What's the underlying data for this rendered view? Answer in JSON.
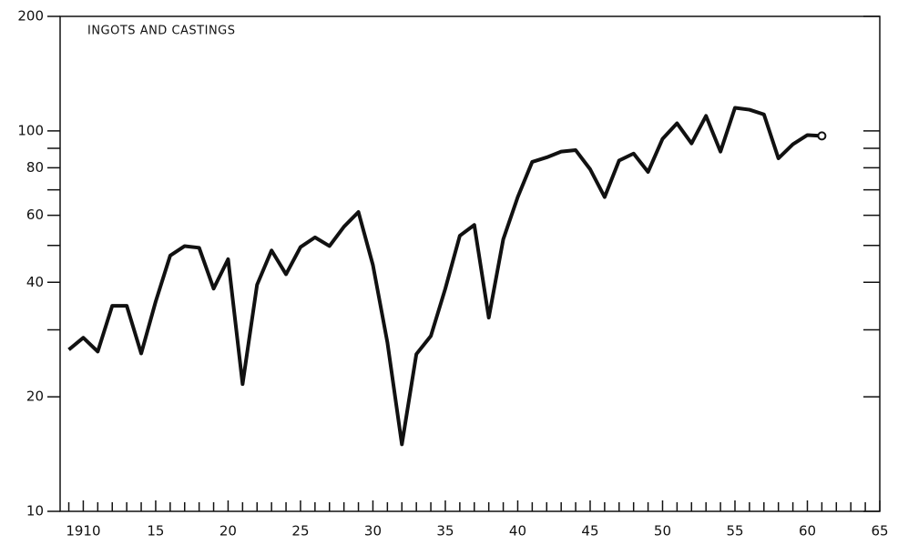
{
  "chart_data": {
    "type": "line",
    "title": "INGOTS AND CASTINGS",
    "x": [
      1909,
      1910,
      1911,
      1912,
      1913,
      1914,
      1915,
      1916,
      1917,
      1918,
      1919,
      1920,
      1921,
      1922,
      1923,
      1924,
      1925,
      1926,
      1927,
      1928,
      1929,
      1930,
      1931,
      1932,
      1933,
      1934,
      1935,
      1936,
      1937,
      1938,
      1939,
      1940,
      1941,
      1942,
      1943,
      1944,
      1945,
      1946,
      1947,
      1948,
      1949,
      1950,
      1951,
      1952,
      1953,
      1954,
      1955,
      1956,
      1957,
      1958,
      1959,
      1960,
      1961
    ],
    "series": [
      {
        "color": "#111111",
        "values": [
          26.6,
          28.6,
          26.3,
          34.7,
          34.7,
          26,
          35.6,
          47,
          49.8,
          49.3,
          38.5,
          46,
          21.6,
          39.4,
          48.5,
          42,
          49.5,
          52.5,
          49.8,
          56,
          61.2,
          44.4,
          27.8,
          15,
          25.9,
          28.9,
          38.5,
          53,
          56.6,
          32.3,
          51.9,
          67,
          82.9,
          85.2,
          88.2,
          89,
          79.3,
          67,
          83.6,
          87.2,
          78,
          95.3,
          104.7,
          92.7,
          109.5,
          88.2,
          115,
          113.7,
          110.5,
          84.7,
          92.2,
          97.5,
          97
        ]
      }
    ],
    "end_marker": "open-circle",
    "xlim": [
      1908.4,
      1965
    ],
    "xticks": [
      {
        "value": 1910,
        "label": "1910"
      },
      {
        "value": 1915,
        "label": "15"
      },
      {
        "value": 1920,
        "label": "20"
      },
      {
        "value": 1925,
        "label": "25"
      },
      {
        "value": 1930,
        "label": "30"
      },
      {
        "value": 1935,
        "label": "35"
      },
      {
        "value": 1940,
        "label": "40"
      },
      {
        "value": 1945,
        "label": "45"
      },
      {
        "value": 1950,
        "label": "50"
      },
      {
        "value": 1955,
        "label": "55"
      },
      {
        "value": 1960,
        "label": "60"
      },
      {
        "value": 1965,
        "label": "65"
      }
    ],
    "minor_xticks": [
      1909,
      1911,
      1912,
      1913,
      1914,
      1916,
      1917,
      1918,
      1919,
      1921,
      1922,
      1923,
      1924,
      1926,
      1927,
      1928,
      1929,
      1931,
      1932,
      1933,
      1934,
      1936,
      1937,
      1938,
      1939,
      1941,
      1942,
      1943,
      1944,
      1946,
      1947,
      1948,
      1949,
      1951,
      1952,
      1953,
      1954,
      1956,
      1957,
      1958,
      1959,
      1961,
      1962,
      1963,
      1964
    ],
    "ylim": [
      10,
      200
    ],
    "log_y": true,
    "yticks": [
      10,
      20,
      40,
      60,
      80,
      100,
      200
    ],
    "minor_yticks": [
      30,
      50,
      70,
      90
    ],
    "grid": false
  }
}
